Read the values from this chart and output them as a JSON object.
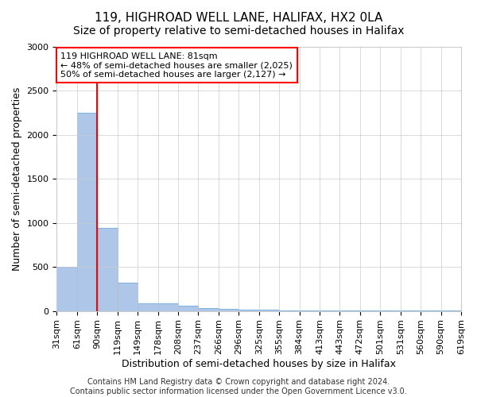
{
  "title": "119, HIGHROAD WELL LANE, HALIFAX, HX2 0LA",
  "subtitle": "Size of property relative to semi-detached houses in Halifax",
  "xlabel": "Distribution of semi-detached houses by size in Halifax",
  "ylabel": "Number of semi-detached properties",
  "bar_values": [
    500,
    2250,
    940,
    320,
    90,
    90,
    55,
    30,
    25,
    15,
    10,
    8,
    5,
    3,
    2,
    2,
    1,
    1,
    1,
    1
  ],
  "bin_labels": [
    "31sqm",
    "61sqm",
    "90sqm",
    "119sqm",
    "149sqm",
    "178sqm",
    "208sqm",
    "237sqm",
    "266sqm",
    "296sqm",
    "325sqm",
    "355sqm",
    "384sqm",
    "413sqm",
    "443sqm",
    "472sqm",
    "501sqm",
    "531sqm",
    "560sqm",
    "590sqm",
    "619sqm"
  ],
  "bar_color": "#aec6e8",
  "bar_edge_color": "#5a9fd4",
  "vline_x": 2,
  "vline_color": "red",
  "annotation_text": "119 HIGHROAD WELL LANE: 81sqm\n← 48% of semi-detached houses are smaller (2,025)\n50% of semi-detached houses are larger (2,127) →",
  "annotation_box_color": "white",
  "annotation_box_edge_color": "red",
  "ylim": [
    0,
    3000
  ],
  "yticks": [
    0,
    500,
    1000,
    1500,
    2000,
    2500,
    3000
  ],
  "background_color": "#ffffff",
  "footer_text": "Contains HM Land Registry data © Crown copyright and database right 2024.\nContains public sector information licensed under the Open Government Licence v3.0.",
  "title_fontsize": 11,
  "subtitle_fontsize": 10,
  "axis_label_fontsize": 9,
  "tick_fontsize": 8,
  "annotation_fontsize": 8,
  "footer_fontsize": 7
}
